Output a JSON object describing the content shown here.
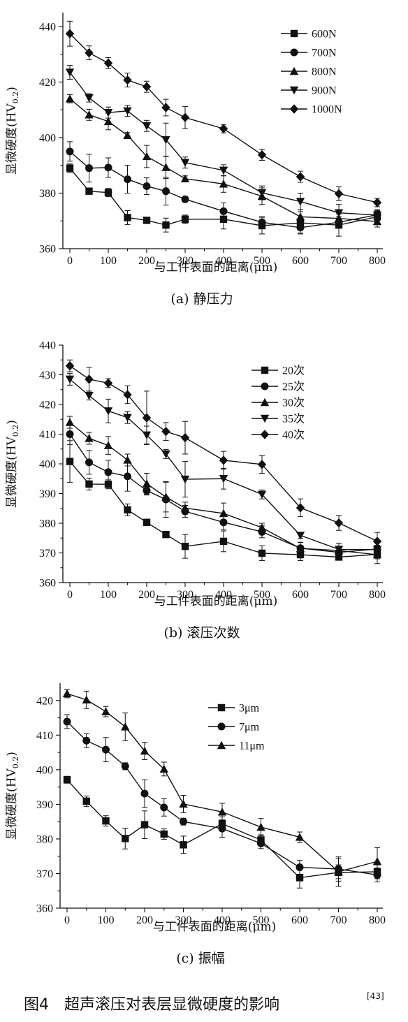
{
  "chart_data": [
    {
      "type": "line",
      "caption": "(a) 静压力",
      "xlabel": "与工件表面的距离(μm)",
      "ylabel_main": "显微硬度(HV",
      "ylabel_sub": "0.2",
      "ylabel_end": ")",
      "x": [
        0,
        50,
        100,
        150,
        200,
        250,
        300,
        400,
        500,
        600,
        700,
        800
      ],
      "xticks": [
        "0",
        "100",
        "200",
        "300",
        "400",
        "500",
        "600",
        "700",
        "800"
      ],
      "ylim": [
        360,
        445
      ],
      "yticks": [
        "360",
        "380",
        "400",
        "420",
        "440"
      ],
      "legend_position": "top-right",
      "series": [
        {
          "name": "600N",
          "marker": "square",
          "values": [
            389,
            380.7,
            380.2,
            371.2,
            370.2,
            368.5,
            370.6,
            370.6,
            368.3,
            369.3,
            368.5,
            371.5
          ],
          "errors": [
            1.5,
            1,
            1.5,
            2.5,
            1,
            2.5,
            1.5,
            3.5,
            3,
            4,
            4,
            2
          ]
        },
        {
          "name": "700N",
          "marker": "circle",
          "values": [
            395,
            389,
            389.2,
            385,
            382.5,
            380.7,
            377.8,
            373.5,
            369.5,
            367.6,
            369.5,
            372.2
          ],
          "errors": [
            3.5,
            5,
            3.5,
            5,
            3,
            5,
            1,
            3,
            2,
            2,
            2,
            1.5
          ]
        },
        {
          "name": "800N",
          "marker": "triangle-up",
          "values": [
            414,
            408.2,
            405.8,
            400.8,
            393.2,
            389.3,
            385.2,
            383.3,
            378.9,
            371.5,
            370.9,
            369.8
          ],
          "errors": [
            1.5,
            2,
            3,
            1,
            4,
            4,
            1,
            3,
            3,
            2.5,
            2,
            2
          ]
        },
        {
          "name": "900N",
          "marker": "triangle-down",
          "values": [
            423.5,
            414.3,
            409,
            409.6,
            404.2,
            399.2,
            391,
            388.2,
            380.1,
            377,
            372.9,
            372.1
          ],
          "errors": [
            2.5,
            1.5,
            2,
            2,
            2,
            6,
            2,
            2,
            2.5,
            3,
            3,
            2
          ]
        },
        {
          "name": "1000N",
          "marker": "diamond",
          "values": [
            437.4,
            430.5,
            426.8,
            420.7,
            418.3,
            410.8,
            407.2,
            403.2,
            393.8,
            385.9,
            379.8,
            376.6
          ],
          "errors": [
            4.5,
            2.5,
            2,
            2.5,
            2,
            3,
            4,
            1.5,
            2,
            2,
            2.5,
            1.5
          ]
        }
      ]
    },
    {
      "type": "line",
      "caption": "(b) 滚压次数",
      "xlabel": "与工件表面的距离(μm)",
      "ylabel_main": "显微硬度(HV",
      "ylabel_sub": "0.2",
      "ylabel_end": ")",
      "x": [
        0,
        50,
        100,
        150,
        200,
        250,
        300,
        400,
        500,
        600,
        700,
        800
      ],
      "xticks": [
        "0",
        "100",
        "200",
        "300",
        "400",
        "500",
        "600",
        "700",
        "800"
      ],
      "ylim": [
        360,
        440
      ],
      "yticks": [
        "360",
        "370",
        "380",
        "390",
        "400",
        "410",
        "420",
        "430",
        "440"
      ],
      "legend_position": "top-right",
      "series": [
        {
          "name": "20次",
          "marker": "square",
          "values": [
            400.8,
            393.2,
            393.1,
            384.5,
            380.3,
            376.2,
            372.2,
            373.9,
            369.9,
            369.4,
            368.6,
            369.5
          ],
          "errors": [
            7,
            2,
            1.5,
            2,
            1,
            1,
            4,
            3.5,
            2.5,
            2,
            1,
            1.5
          ]
        },
        {
          "name": "25次",
          "marker": "circle",
          "values": [
            410,
            400.5,
            397.2,
            395.8,
            391,
            388,
            384,
            380.3,
            377.1,
            371.6,
            370.2,
            371.3
          ],
          "errors": [
            3.5,
            4,
            4,
            5,
            1.5,
            6,
            2,
            2.5,
            2,
            2,
            2,
            2
          ]
        },
        {
          "name": "30次",
          "marker": "triangle-up",
          "values": [
            414,
            408.6,
            406.2,
            401.3,
            393.3,
            388.8,
            385.1,
            383.3,
            378.5,
            371.5,
            370.8,
            369.4
          ],
          "errors": [
            2,
            2,
            3,
            2,
            3.5,
            5,
            2,
            3.5,
            1.5,
            2,
            2.5,
            3
          ]
        },
        {
          "name": "35次",
          "marker": "triangle-down",
          "values": [
            428.5,
            423,
            417.8,
            415.6,
            409.7,
            403.3,
            394.8,
            395,
            389.7,
            375.9,
            371.2,
            371.1
          ],
          "errors": [
            2,
            1.5,
            4,
            2,
            3,
            1.5,
            6,
            3.5,
            1.5,
            1,
            1,
            1.5
          ]
        },
        {
          "name": "40次",
          "marker": "diamond",
          "values": [
            433,
            428.5,
            427.2,
            423.3,
            415.5,
            410.9,
            408.8,
            401.2,
            399.8,
            385.2,
            380.1,
            373.9
          ],
          "errors": [
            2,
            4,
            1.5,
            3,
            9,
            3,
            5.5,
            3,
            3,
            3,
            2.5,
            3
          ]
        }
      ]
    },
    {
      "type": "line",
      "caption": "(c) 振幅",
      "xlabel": "与工件表面的距离(μm)",
      "ylabel_main": "显微硬度(HV",
      "ylabel_sub": "0.2",
      "ylabel_end": ")",
      "x": [
        0,
        50,
        100,
        150,
        200,
        250,
        300,
        400,
        500,
        600,
        700,
        800
      ],
      "xticks": [
        "0",
        "100",
        "200",
        "300",
        "400",
        "500",
        "600",
        "700",
        "800"
      ],
      "ylim": [
        360,
        425
      ],
      "yticks": [
        "360",
        "370",
        "380",
        "390",
        "400",
        "410",
        "420"
      ],
      "legend_position": "top-right",
      "series": [
        {
          "name": "3μm",
          "marker": "square",
          "values": [
            397.1,
            390.9,
            385.2,
            380.1,
            384.1,
            381.4,
            378.3,
            384.4,
            379.7,
            368.8,
            370.3,
            370.5
          ],
          "errors": [
            1,
            1.5,
            1.5,
            3,
            4,
            1.5,
            2.5,
            2,
            1.5,
            3,
            4,
            2
          ]
        },
        {
          "name": "7μm",
          "marker": "circle",
          "values": [
            413.9,
            408.4,
            405.8,
            401,
            393.1,
            389.1,
            385,
            383,
            378.7,
            371.8,
            371.3,
            369.6
          ],
          "errors": [
            2,
            2,
            3.5,
            1,
            4,
            2.5,
            1,
            2.5,
            1.5,
            2,
            3.5,
            2
          ]
        },
        {
          "name": "11μm",
          "marker": "triangle-up",
          "values": [
            422,
            420.2,
            416.8,
            412.4,
            405.4,
            400.2,
            390.1,
            387.8,
            383.4,
            380.5,
            370.5,
            373.5
          ],
          "errors": [
            1.2,
            2.5,
            1.5,
            4,
            2.5,
            2,
            2.5,
            2.5,
            2.5,
            1.5,
            2,
            4
          ]
        }
      ]
    }
  ],
  "figure_caption": {
    "text": "图4　超声滚压对表层显微硬度的影响",
    "ref": "[43]"
  }
}
